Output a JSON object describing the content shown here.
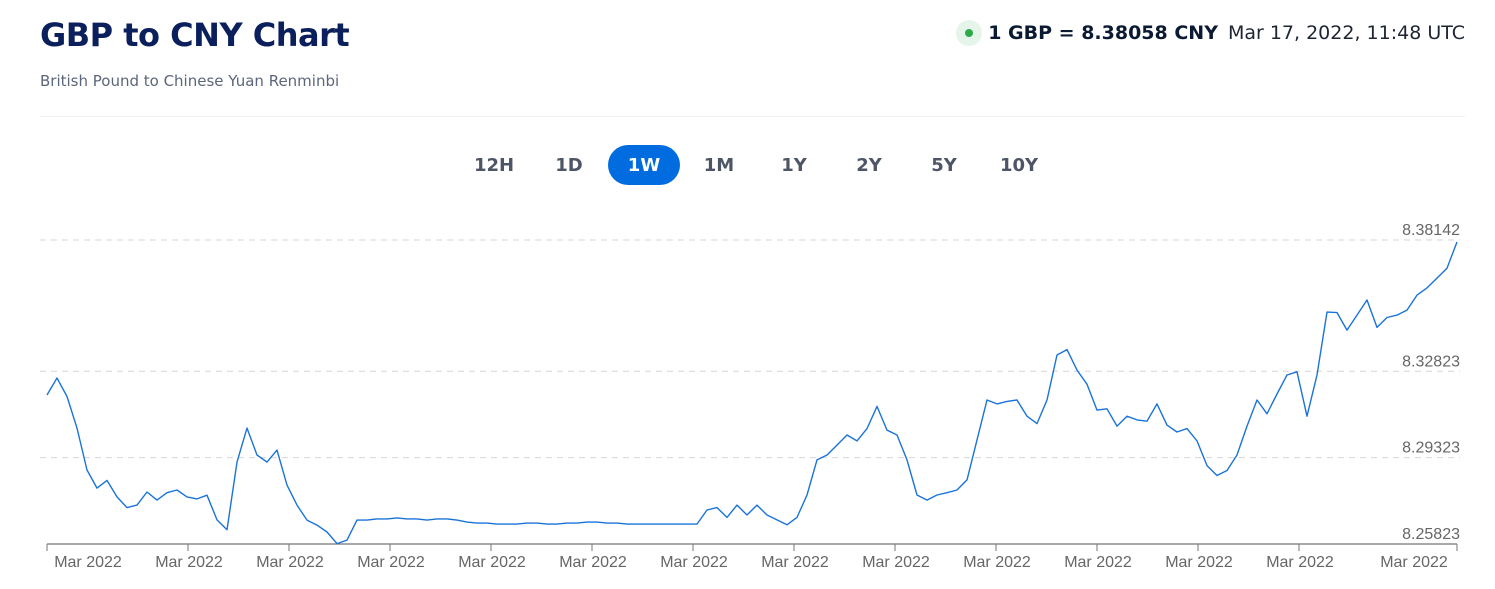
{
  "header": {
    "title": "GBP to CNY Chart",
    "subtitle": "British Pound to Chinese Yuan Renminbi",
    "rate": "1 GBP = 8.38058 CNY",
    "timestamp": "Mar 17, 2022, 11:48 UTC",
    "status_icon": "live-dot-icon",
    "status_color": "#2eaa4a"
  },
  "tabs": [
    {
      "label": "12H"
    },
    {
      "label": "1D"
    },
    {
      "label": "1W",
      "active": true
    },
    {
      "label": "1M"
    },
    {
      "label": "1Y"
    },
    {
      "label": "2Y"
    },
    {
      "label": "5Y"
    },
    {
      "label": "10Y"
    }
  ],
  "accent": "#006ce0",
  "chart_data": {
    "type": "line",
    "line_color": "#1a73d9",
    "grid": "horizontal dashed",
    "ylim": [
      8.25823,
      8.38142
    ],
    "yticks": [
      "8.38142",
      "8.32823",
      "8.29323",
      "8.25823"
    ],
    "xticks": [
      "Mar 2022",
      "Mar 2022",
      "Mar 2022",
      "Mar 2022",
      "Mar 2022",
      "Mar 2022",
      "Mar 2022",
      "Mar 2022",
      "Mar 2022",
      "Mar 2022",
      "Mar 2022",
      "Mar 2022",
      "Mar 2022",
      "Mar 2022"
    ],
    "values": [
      8.3186,
      8.3255,
      8.318,
      8.3052,
      8.2882,
      8.2809,
      8.284,
      8.2773,
      8.273,
      8.274,
      8.2793,
      8.276,
      8.279,
      8.2801,
      8.2773,
      8.2765,
      8.278,
      8.268,
      8.264,
      8.2914,
      8.3052,
      8.2943,
      8.2914,
      8.2963,
      8.2821,
      8.274,
      8.2679,
      8.2659,
      8.2631,
      8.2584,
      8.2598,
      8.2679,
      8.2679,
      8.2684,
      8.2684,
      8.2688,
      8.2684,
      8.2684,
      8.2679,
      8.2684,
      8.2684,
      8.2679,
      8.2671,
      8.2667,
      8.2667,
      8.2663,
      8.2663,
      8.2663,
      8.2667,
      8.2667,
      8.2663,
      8.2663,
      8.2667,
      8.2667,
      8.2671,
      8.2671,
      8.2667,
      8.2667,
      8.2663,
      8.2663,
      8.2663,
      8.2663,
      8.2663,
      8.2663,
      8.2663,
      8.2663,
      8.272,
      8.273,
      8.269,
      8.274,
      8.27,
      8.274,
      8.27,
      8.268,
      8.266,
      8.269,
      8.2781,
      8.2923,
      8.2943,
      8.2983,
      8.3024,
      8.3,
      8.305,
      8.314,
      8.3044,
      8.3024,
      8.2923,
      8.2781,
      8.276,
      8.2781,
      8.279,
      8.2801,
      8.2842,
      8.3004,
      8.3166,
      8.315,
      8.316,
      8.3166,
      8.31,
      8.307,
      8.3166,
      8.3348,
      8.337,
      8.3287,
      8.323,
      8.3125,
      8.313,
      8.306,
      8.31,
      8.3085,
      8.308,
      8.315,
      8.3064,
      8.3036,
      8.305,
      8.3,
      8.29,
      8.286,
      8.288,
      8.2943,
      8.306,
      8.3166,
      8.311,
      8.319,
      8.3267,
      8.328,
      8.31,
      8.3267,
      8.3522,
      8.352,
      8.3449,
      8.351,
      8.3571,
      8.346,
      8.35,
      8.351,
      8.353,
      8.3591,
      8.362,
      8.366,
      8.37,
      8.3806
    ]
  }
}
